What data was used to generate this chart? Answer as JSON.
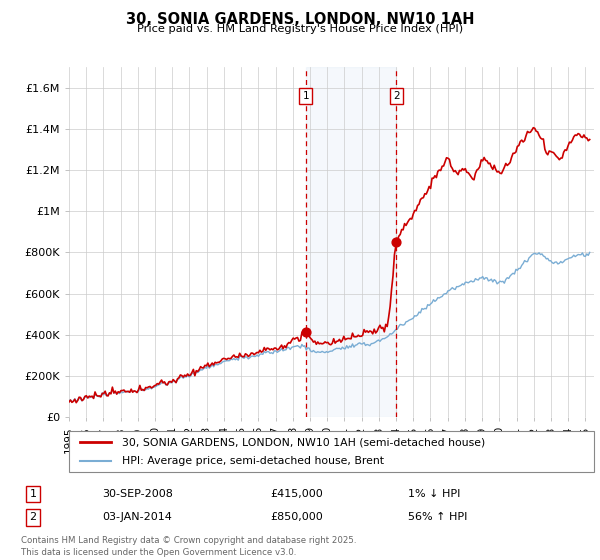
{
  "title": "30, SONIA GARDENS, LONDON, NW10 1AH",
  "subtitle": "Price paid vs. HM Land Registry's House Price Index (HPI)",
  "ylabel_ticks": [
    "£0",
    "£200K",
    "£400K",
    "£600K",
    "£800K",
    "£1M",
    "£1.2M",
    "£1.4M",
    "£1.6M"
  ],
  "ytick_values": [
    0,
    200000,
    400000,
    600000,
    800000,
    1000000,
    1200000,
    1400000,
    1600000
  ],
  "ylim": [
    0,
    1700000
  ],
  "xlim_start": 1995.0,
  "xlim_end": 2025.5,
  "transaction1": {
    "date": 2008.75,
    "price": 415000,
    "label": "1",
    "note": "30-SEP-2008",
    "amount": "£415,000",
    "change": "1% ↓ HPI"
  },
  "transaction2": {
    "date": 2014.02,
    "price": 850000,
    "label": "2",
    "note": "03-JAN-2014",
    "amount": "£850,000",
    "change": "56% ↑ HPI"
  },
  "legend_line1": "30, SONIA GARDENS, LONDON, NW10 1AH (semi-detached house)",
  "legend_line2": "HPI: Average price, semi-detached house, Brent",
  "footer": "Contains HM Land Registry data © Crown copyright and database right 2025.\nThis data is licensed under the Open Government Licence v3.0.",
  "line_color_red": "#cc0000",
  "line_color_blue": "#7aadd4",
  "dot_color_red": "#cc0000",
  "background_shading": "#ddeeff",
  "box_color": "#cc0000",
  "xticks": [
    1995,
    1996,
    1997,
    1998,
    1999,
    2000,
    2001,
    2002,
    2003,
    2004,
    2005,
    2006,
    2007,
    2008,
    2009,
    2010,
    2011,
    2012,
    2013,
    2014,
    2015,
    2016,
    2017,
    2018,
    2019,
    2020,
    2021,
    2022,
    2023,
    2024,
    2025
  ]
}
